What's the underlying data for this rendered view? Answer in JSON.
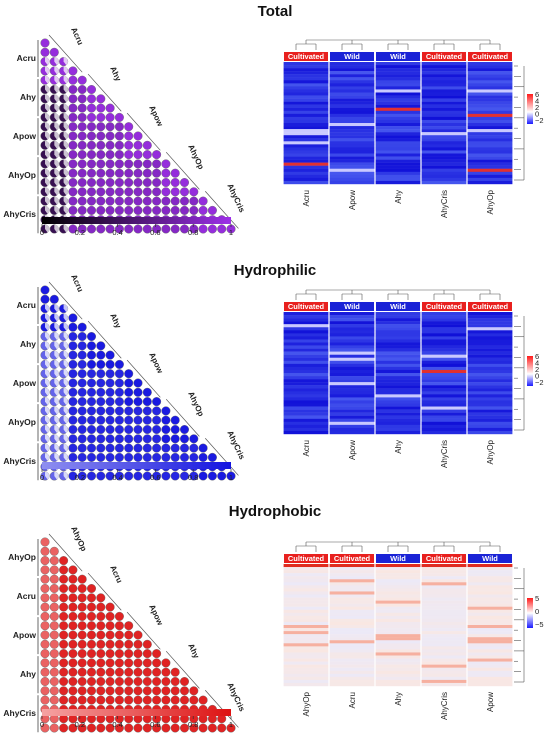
{
  "panels": [
    {
      "title": "Total",
      "corr_labels": [
        "Acru",
        "Ahy",
        "Apow",
        "AhyOp",
        "AhyCris"
      ],
      "colorbar_ticks": [
        "0",
        "0.2",
        "0.4",
        "0.6",
        "0.8",
        "1"
      ],
      "corr_color_low": "#000000",
      "corr_color_high": "#9d2fe8",
      "heatmap_groups": [
        "Cultivated",
        "Wild",
        "Wild",
        "Cultivated",
        "Cultivated"
      ],
      "heatmap_columns": [
        "Acru",
        "Apow",
        "Ahy",
        "AhyCris",
        "AhyOp"
      ],
      "legend_ticks": [
        "6",
        "4",
        "2",
        "0",
        "−2"
      ],
      "heatmap_palette": "blue"
    },
    {
      "title": "Hydrophilic",
      "corr_labels": [
        "Acru",
        "Ahy",
        "Apow",
        "AhyOp",
        "AhyCris"
      ],
      "colorbar_ticks": [
        "0",
        "0.2",
        "0.4",
        "0.6",
        "0.8",
        "1"
      ],
      "corr_color_low": "#8f8ff0",
      "corr_color_high": "#1414e0",
      "heatmap_groups": [
        "Cultivated",
        "Wild",
        "Wild",
        "Cultivated",
        "Cultivated"
      ],
      "heatmap_columns": [
        "Acru",
        "Apow",
        "Ahy",
        "AhyCris",
        "AhyOp"
      ],
      "legend_ticks": [
        "6",
        "4",
        "2",
        "0",
        "−2"
      ],
      "heatmap_palette": "blue"
    },
    {
      "title": "Hydrophobic",
      "corr_labels": [
        "AhyOp",
        "Acru",
        "Apow",
        "Ahy",
        "AhyCris"
      ],
      "colorbar_ticks": [
        "0",
        "0.2",
        "0.4",
        "0.6",
        "0.8",
        "1"
      ],
      "corr_color_low": "#f5a3a3",
      "corr_color_high": "#dd1212",
      "heatmap_groups": [
        "Cultivated",
        "Cultivated",
        "Wild",
        "Cultivated",
        "Wild"
      ],
      "heatmap_columns": [
        "AhyOp",
        "Acru",
        "Ahy",
        "AhyCris",
        "Apow"
      ],
      "legend_ticks": [
        "5",
        "0",
        "−5"
      ],
      "heatmap_palette": "diverging"
    }
  ],
  "colors": {
    "cultivated": "#e8201e",
    "wild": "#1a23d6"
  }
}
